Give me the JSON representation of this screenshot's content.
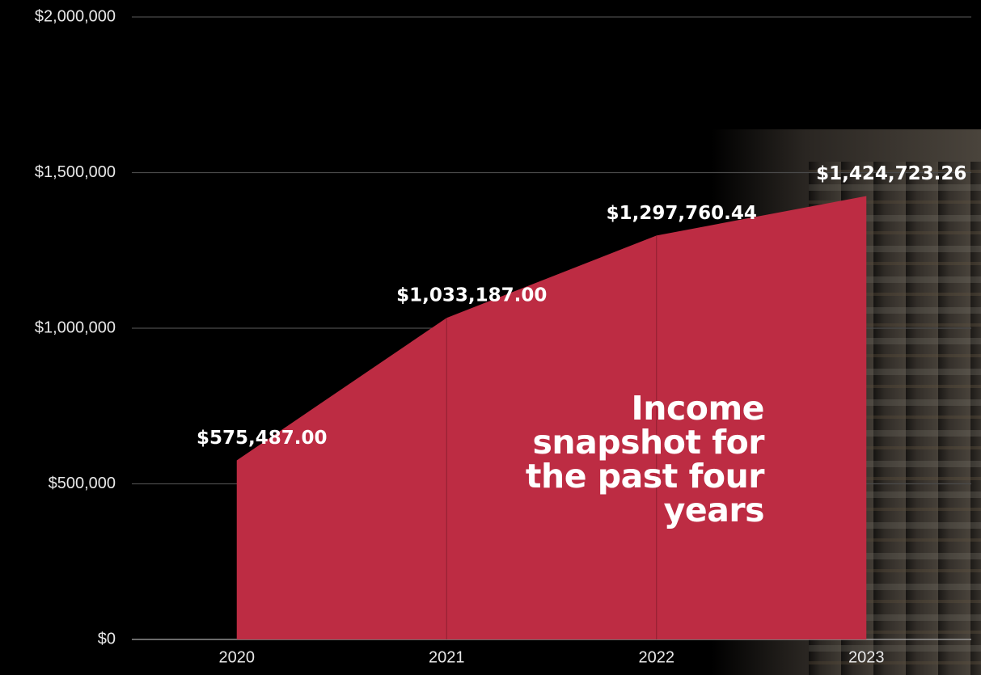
{
  "chart_data": {
    "type": "area",
    "annotation": "Income snapshot for the past four years",
    "categories": [
      "2020",
      "2021",
      "2022",
      "2023"
    ],
    "values": [
      575487.0,
      1033187.0,
      1297760.44,
      1424723.26
    ],
    "value_labels": [
      "$575,487.00",
      "$1,033,187.00",
      "$1,297,760.44",
      "$1,424,723.26"
    ],
    "color": "#bd2c43",
    "ylim": [
      0,
      2000000
    ],
    "yticks": [
      {
        "value": 0,
        "label": "$0"
      },
      {
        "value": 500000,
        "label": "$500,000"
      },
      {
        "value": 1000000,
        "label": "$1,000,000"
      },
      {
        "value": 1500000,
        "label": "$1,500,000"
      },
      {
        "value": 2000000,
        "label": "$2,000,000"
      }
    ],
    "grid": true
  }
}
